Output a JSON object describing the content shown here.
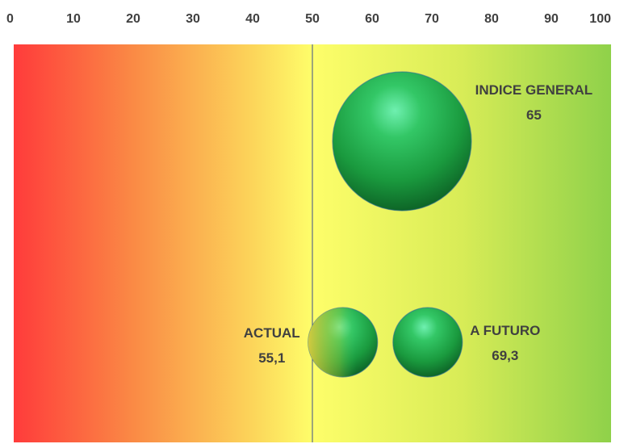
{
  "chart_data": {
    "type": "scatter",
    "xlim": [
      0,
      100
    ],
    "x_ticks": [
      0,
      10,
      20,
      30,
      40,
      50,
      60,
      70,
      80,
      90,
      100
    ],
    "x_axis_position": "top",
    "reference_line_x": 50,
    "background_gradient": [
      "#ff3b3b",
      "#fa8a45",
      "#fcd55a",
      "#fefe6a",
      "#d8ec57",
      "#8fd14a"
    ],
    "bubble_color": "#22a846",
    "points": [
      {
        "label": "INDICE GENERAL",
        "value_label": "65",
        "x": 65,
        "level": "upper",
        "size": 2.0
      },
      {
        "label": "ACTUAL",
        "value_label": "55,1",
        "x": 55.1,
        "level": "lower",
        "size": 1.0
      },
      {
        "label": "A FUTURO",
        "value_label": "69,3",
        "x": 69.3,
        "level": "lower",
        "size": 1.0
      }
    ],
    "grid": false,
    "legend": "none"
  }
}
